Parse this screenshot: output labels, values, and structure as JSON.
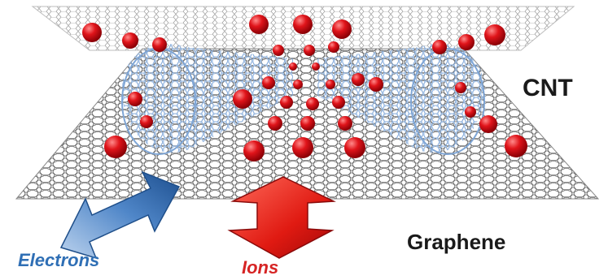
{
  "labels": {
    "cnt": "CNT",
    "graphene": "Graphene",
    "electrons": "Electrons",
    "ions": "Ions"
  },
  "colors": {
    "ion_red": "#e0141a",
    "electron_blue": "#3a78c2",
    "cnt_blue": "#8fb3de",
    "graphene_gray": "#7a7a7a",
    "label_dark": "#1a1a1a"
  }
}
